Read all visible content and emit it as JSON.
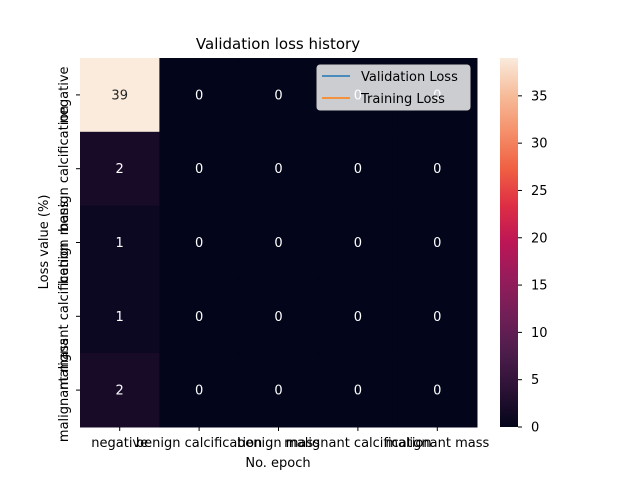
{
  "chart_data": {
    "type": "heatmap",
    "title": "Validation loss history",
    "xlabel": "No. epoch",
    "ylabel": "Loss value (%)",
    "x_categories": [
      "negative",
      "benign calcification",
      "benign mass",
      "malignant calcification",
      "malignant mass"
    ],
    "y_categories": [
      "negative",
      "benign calcification",
      "benign mass",
      "malignant calcification",
      "malignant mass"
    ],
    "values": [
      [
        39,
        0,
        0,
        0,
        0
      ],
      [
        2,
        0,
        0,
        0,
        0
      ],
      [
        1,
        0,
        0,
        0,
        0
      ],
      [
        1,
        0,
        0,
        0,
        0
      ],
      [
        2,
        0,
        0,
        0,
        0
      ]
    ],
    "colorbar": {
      "min": 0,
      "max": 39,
      "ticks": [
        0,
        5,
        10,
        15,
        20,
        25,
        30,
        35
      ],
      "colormap": "rocket"
    },
    "legend": {
      "position": "upper-right",
      "entries": [
        {
          "label": "Validation Loss",
          "color": "#1f77b4"
        },
        {
          "label": "Training Loss",
          "color": "#ff7f0e"
        }
      ]
    }
  }
}
